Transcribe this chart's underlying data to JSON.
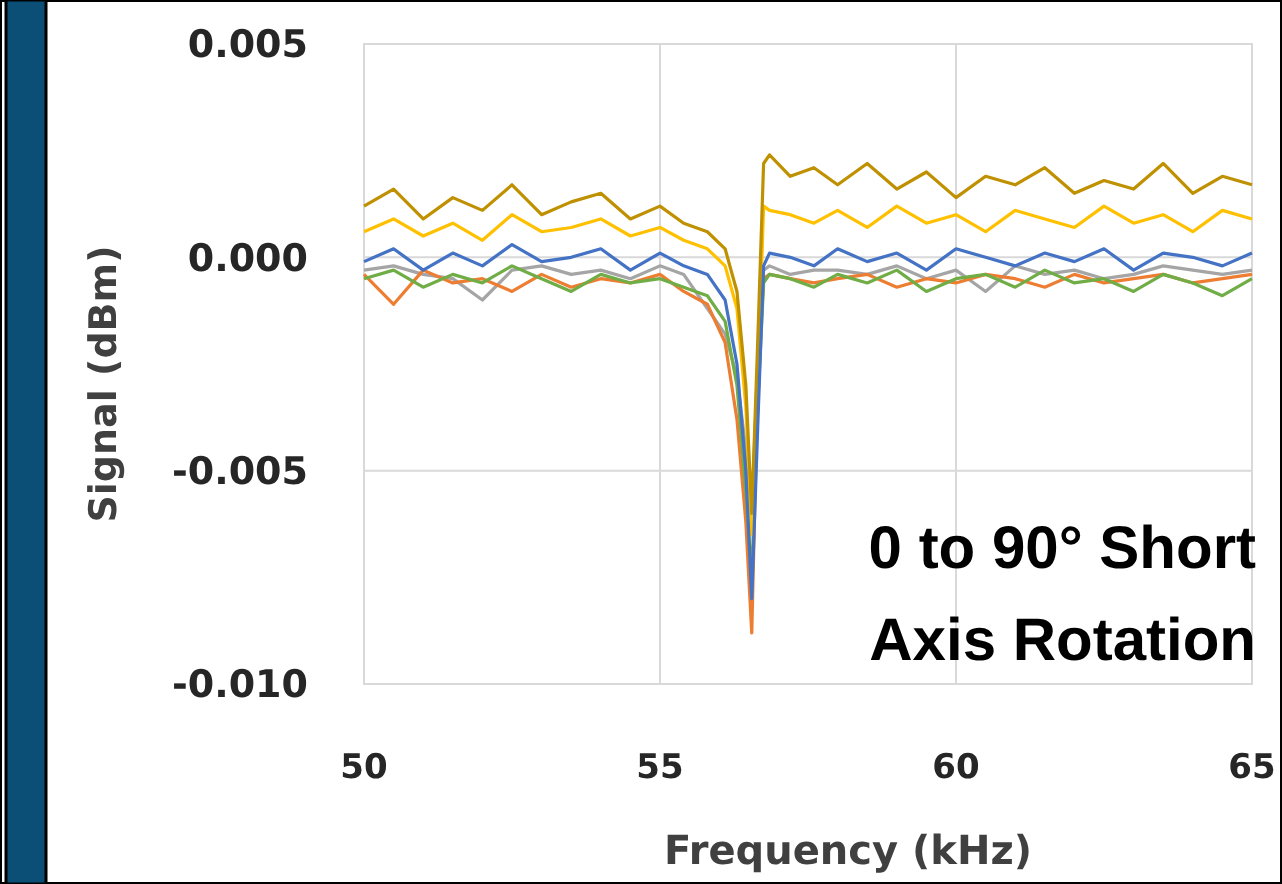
{
  "chart_data": {
    "type": "line",
    "xlabel": "Frequency (kHz)",
    "ylabel": "Signal (dBm)",
    "x": [
      50,
      50.5,
      51,
      51.5,
      52,
      52.5,
      53,
      53.5,
      54,
      54.5,
      55,
      55.4,
      55.8,
      56.1,
      56.3,
      56.45,
      56.55,
      56.65,
      56.75,
      56.85,
      57.2,
      57.6,
      58,
      58.5,
      59,
      59.5,
      60,
      60.5,
      61,
      61.5,
      62,
      62.5,
      63,
      63.5,
      64,
      64.5,
      65
    ],
    "xlim": [
      50,
      65
    ],
    "xticks": [
      50,
      55,
      60,
      65
    ],
    "ylim": [
      -0.01,
      0.005
    ],
    "yticks": [
      {
        "value": -0.01,
        "label": "-0.010"
      },
      {
        "value": -0.005,
        "label": "-0.005"
      },
      {
        "value": 0,
        "label": "0.000"
      },
      {
        "value": 0.005,
        "label": "0.005"
      }
    ],
    "grid": true,
    "marker": "none",
    "line_style": "solid",
    "annotations": [
      "0 to 90° Short Axis Rotation"
    ],
    "series": [
      {
        "color": "#a5a5a5",
        "values": [
          -0.0003,
          -0.0002,
          -0.0004,
          -0.0005,
          -0.001,
          -0.0003,
          -0.0002,
          -0.0004,
          -0.0003,
          -0.0005,
          -0.0002,
          -0.0004,
          -0.0012,
          -0.0018,
          -0.0028,
          -0.0045,
          -0.006,
          -0.0025,
          -0.0003,
          -0.0002,
          -0.0004,
          -0.0003,
          -0.0003,
          -0.0004,
          -0.0002,
          -0.0005,
          -0.0003,
          -0.0008,
          -0.0002,
          -0.0004,
          -0.0003,
          -0.0005,
          -0.0004,
          -0.0002,
          -0.0003,
          -0.0004,
          -0.0003
        ]
      },
      {
        "color": "#ed7d31",
        "values": [
          -0.0004,
          -0.0011,
          -0.0003,
          -0.0006,
          -0.0005,
          -0.0008,
          -0.0004,
          -0.0007,
          -0.0005,
          -0.0006,
          -0.0004,
          -0.0008,
          -0.0011,
          -0.002,
          -0.0038,
          -0.0062,
          -0.0088,
          -0.003,
          -0.0005,
          -0.0004,
          -0.0005,
          -0.0006,
          -0.0005,
          -0.0004,
          -0.0007,
          -0.0005,
          -0.0006,
          -0.0004,
          -0.0005,
          -0.0007,
          -0.0004,
          -0.0006,
          -0.0005,
          -0.0004,
          -0.0006,
          -0.0005,
          -0.0004
        ]
      },
      {
        "color": "#70ad47",
        "values": [
          -0.0005,
          -0.0003,
          -0.0007,
          -0.0004,
          -0.0006,
          -0.0002,
          -0.0005,
          -0.0008,
          -0.0004,
          -0.0006,
          -0.0005,
          -0.0007,
          -0.0009,
          -0.0015,
          -0.003,
          -0.0055,
          -0.0075,
          -0.0035,
          -0.0006,
          -0.0004,
          -0.0005,
          -0.0007,
          -0.0004,
          -0.0006,
          -0.0003,
          -0.0008,
          -0.0005,
          -0.0004,
          -0.0007,
          -0.0003,
          -0.0006,
          -0.0005,
          -0.0008,
          -0.0004,
          -0.0006,
          -0.0009,
          -0.0005
        ]
      },
      {
        "color": "#ffc000",
        "values": [
          0.0006,
          0.0009,
          0.0005,
          0.0008,
          0.0004,
          0.001,
          0.0006,
          0.0007,
          0.0009,
          0.0005,
          0.0007,
          0.0004,
          0.0002,
          -0.0002,
          -0.0012,
          -0.0035,
          -0.0065,
          -0.003,
          0.0012,
          0.0011,
          0.001,
          0.0008,
          0.0011,
          0.0007,
          0.0012,
          0.0008,
          0.001,
          0.0006,
          0.0011,
          0.0009,
          0.0007,
          0.0012,
          0.0008,
          0.001,
          0.0006,
          0.0011,
          0.0009
        ]
      },
      {
        "color": "#bf9000",
        "values": [
          0.0012,
          0.0016,
          0.0009,
          0.0014,
          0.0011,
          0.0017,
          0.001,
          0.0013,
          0.0015,
          0.0009,
          0.0012,
          0.0008,
          0.0006,
          0.0002,
          -0.0008,
          -0.003,
          -0.006,
          -0.002,
          0.0022,
          0.0024,
          0.0019,
          0.0021,
          0.0017,
          0.0022,
          0.0016,
          0.002,
          0.0014,
          0.0019,
          0.0017,
          0.0021,
          0.0015,
          0.0018,
          0.0016,
          0.0022,
          0.0015,
          0.0019,
          0.0017
        ]
      },
      {
        "color": "#4472c4",
        "values": [
          -0.0001,
          0.0002,
          -0.0003,
          0.0001,
          -0.0002,
          0.0003,
          -0.0001,
          0,
          0.0002,
          -0.0003,
          0.0001,
          -0.0002,
          -0.0004,
          -0.001,
          -0.0025,
          -0.005,
          -0.008,
          -0.004,
          -0.0002,
          0.0001,
          0,
          -0.0002,
          0.0002,
          -0.0001,
          0.0001,
          -0.0003,
          0.0002,
          0,
          -0.0002,
          0.0001,
          -0.0001,
          0.0002,
          -0.0003,
          0.0001,
          0,
          -0.0002,
          0.0001
        ]
      }
    ]
  }
}
